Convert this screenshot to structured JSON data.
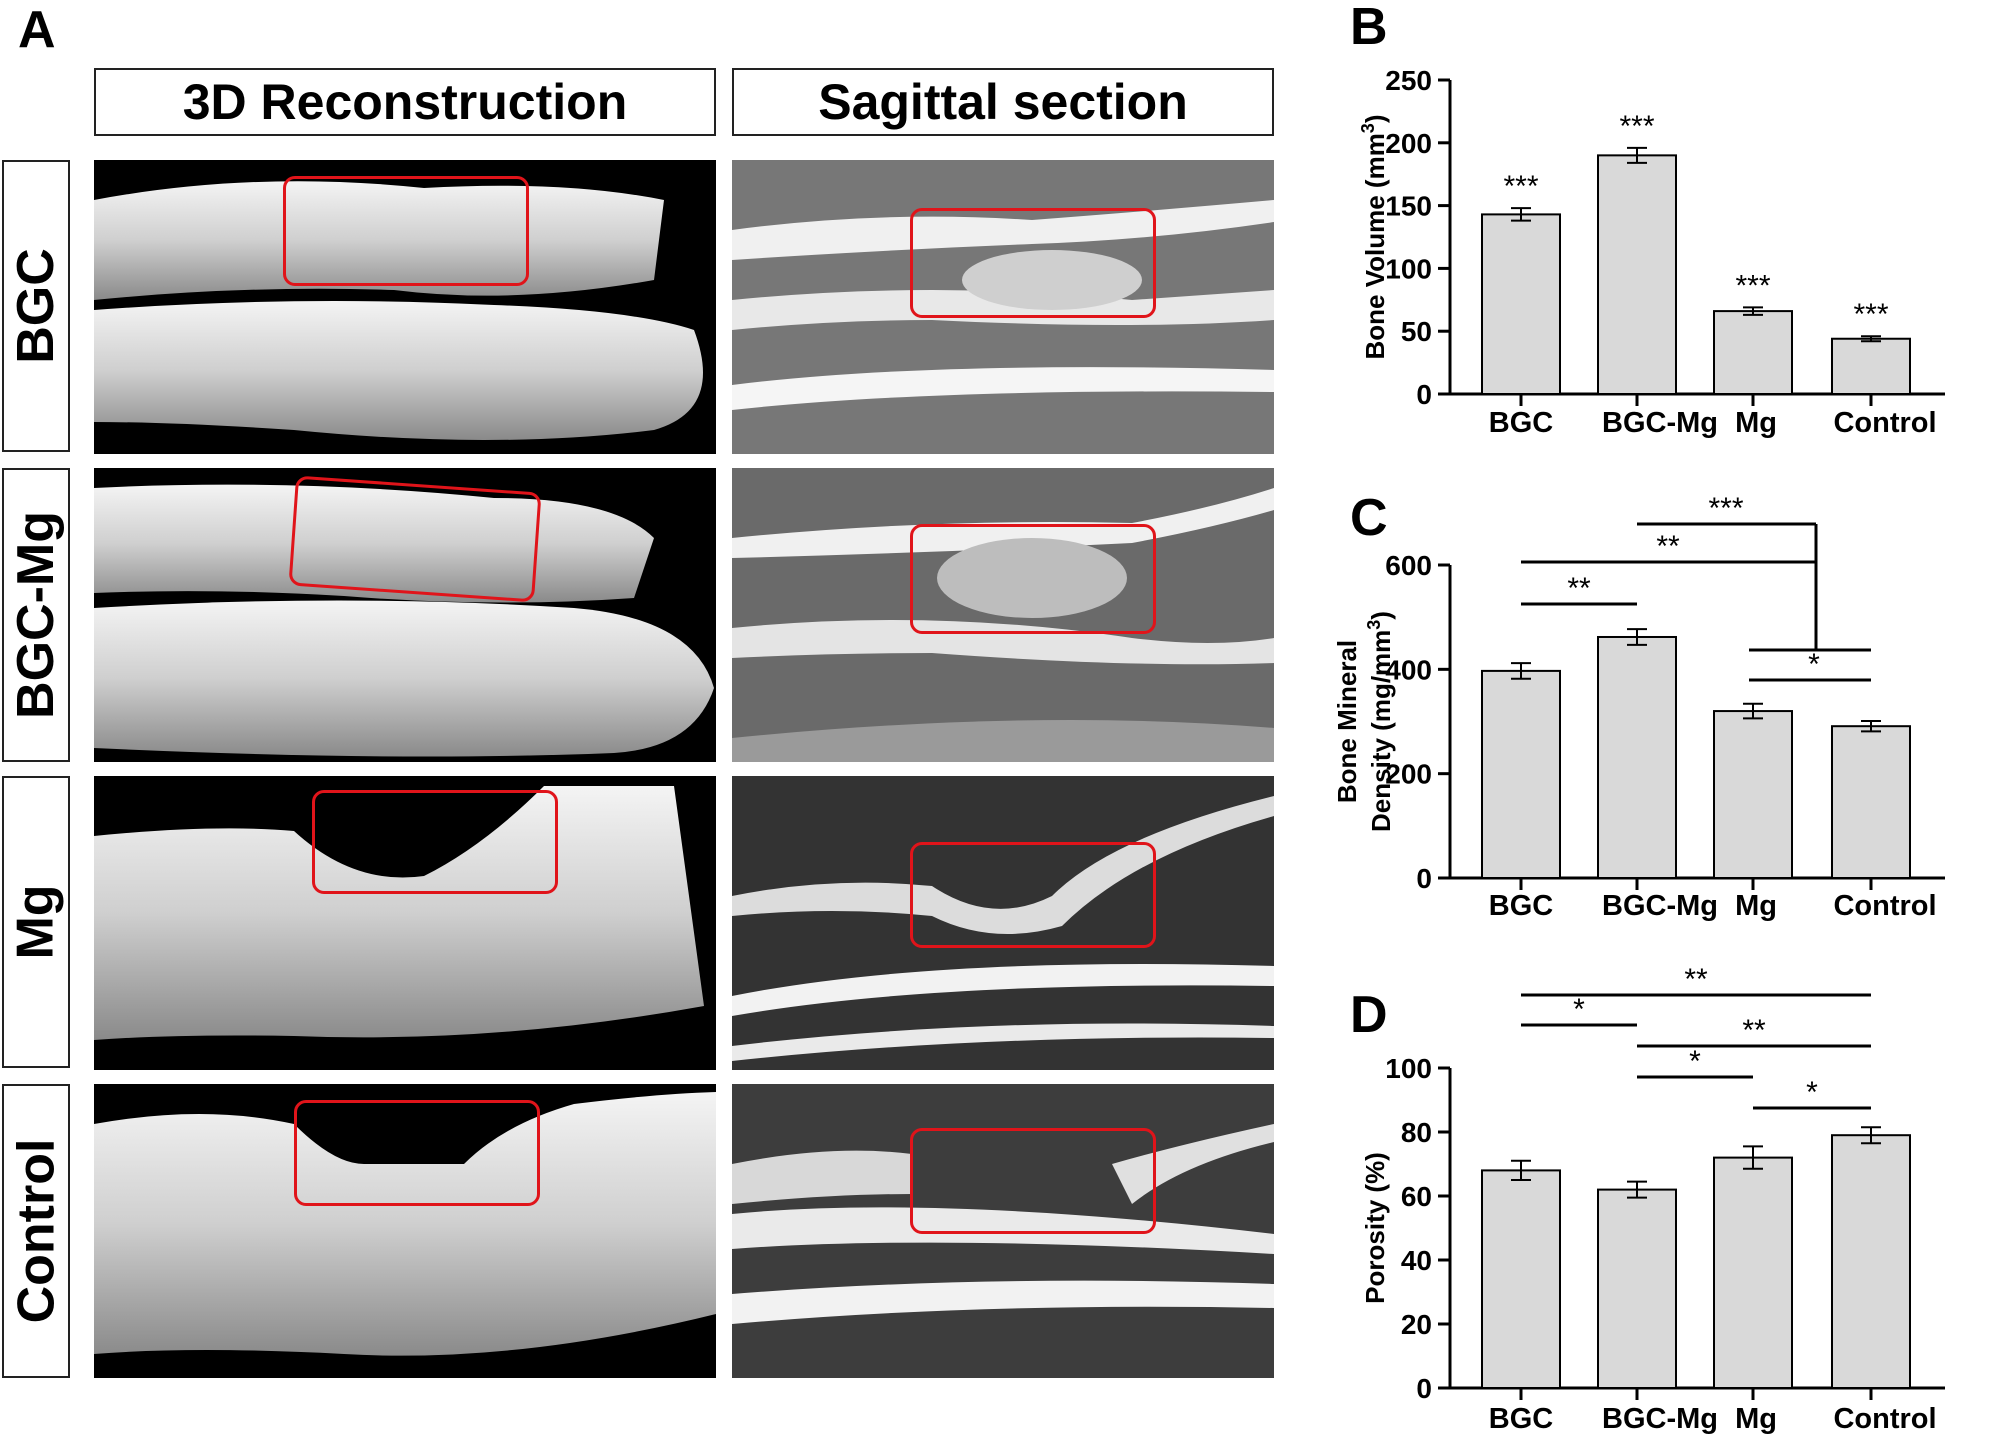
{
  "panel_a": {
    "letter": "A",
    "col_headers": [
      "3D Reconstruction",
      "Sagittal section"
    ],
    "row_labels": [
      "BGC",
      "BGC-Mg",
      "Mg",
      "Control"
    ]
  },
  "colors": {
    "bar_fill": "#d9d9d9",
    "roi_stroke": "#e0141a",
    "axis": "#000000"
  },
  "chart_data": [
    {
      "panel": "B",
      "type": "bar",
      "categories": [
        "BGC",
        "BGC-Mg",
        "Mg",
        "Control"
      ],
      "values": [
        143,
        190,
        66,
        44
      ],
      "errors": [
        5,
        6,
        3,
        2
      ],
      "ylabel_parts": [
        "Bone Volume (mm",
        "3",
        ")"
      ],
      "ylim": [
        0,
        250
      ],
      "yticks": [
        0,
        50,
        100,
        150,
        200,
        250
      ],
      "annotations": [
        "***",
        "***",
        "***",
        "***"
      ],
      "brackets": []
    },
    {
      "panel": "C",
      "type": "bar",
      "categories": [
        "BGC",
        "BGC-Mg",
        "Mg",
        "Control"
      ],
      "values": [
        397,
        462,
        320,
        291
      ],
      "errors": [
        15,
        15,
        14,
        10
      ],
      "ylabel_line1": "Bone Mineral",
      "ylabel_parts": [
        "Density (mg/mm",
        "3",
        ")"
      ],
      "ylim": [
        0,
        600
      ],
      "yticks": [
        0,
        200,
        400,
        600
      ],
      "annotations": [],
      "brackets": [
        {
          "from": 0,
          "to": 1,
          "label": "**"
        },
        {
          "from": 0,
          "to": "mg_control",
          "label": "**"
        },
        {
          "from": 1,
          "to": "mg_control",
          "label": "***"
        },
        {
          "from": 2,
          "to": 3,
          "label": "*"
        }
      ]
    },
    {
      "panel": "D",
      "type": "bar",
      "categories": [
        "BGC",
        "BGC-Mg",
        "Mg",
        "Control"
      ],
      "values": [
        68,
        62,
        72,
        79
      ],
      "errors": [
        3,
        2.5,
        3.5,
        2.5
      ],
      "ylabel_parts": [
        "Porosity (%)"
      ],
      "ylim": [
        0,
        100
      ],
      "yticks": [
        0,
        20,
        40,
        60,
        80,
        100
      ],
      "annotations": [],
      "brackets": [
        {
          "from": 0,
          "to": 3,
          "label": "**"
        },
        {
          "from": 0,
          "to": 1,
          "label": "*"
        },
        {
          "from": 1,
          "to": 3,
          "label": "**"
        },
        {
          "from": 1,
          "to": 2,
          "label": "*"
        },
        {
          "from": 2,
          "to": 3,
          "label": "*"
        }
      ]
    }
  ]
}
